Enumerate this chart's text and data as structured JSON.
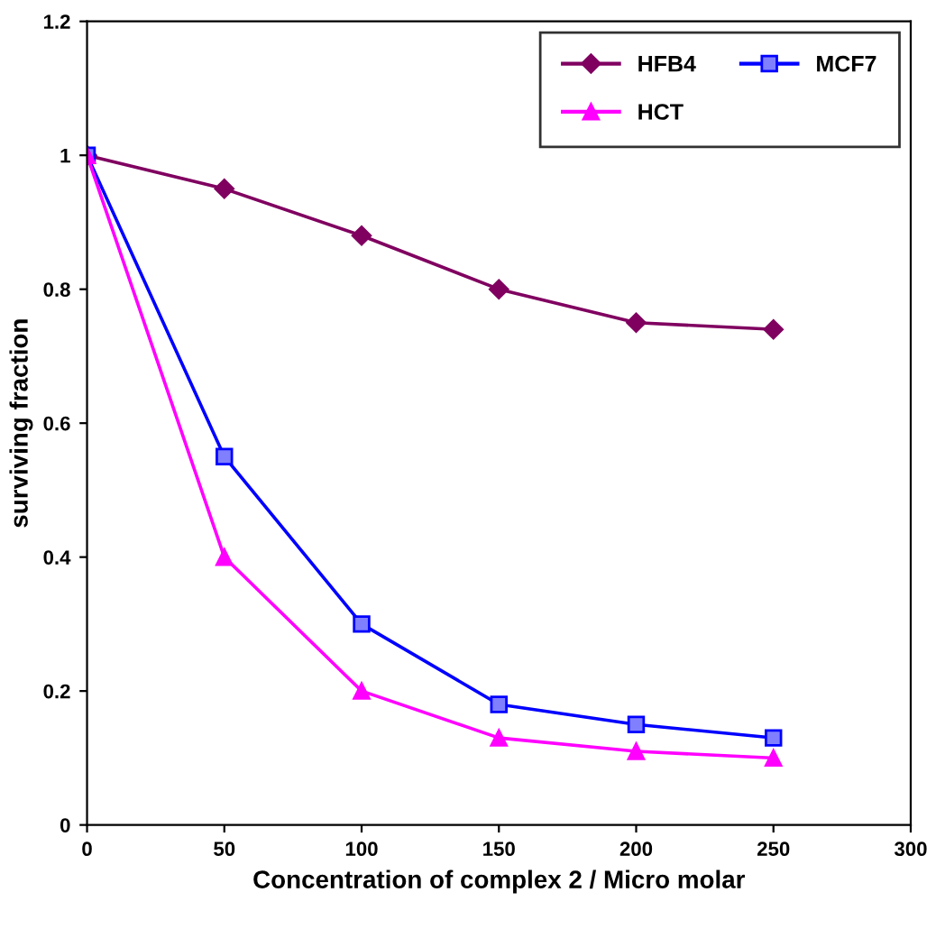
{
  "chart_data": {
    "type": "line",
    "xlabel": "Concentration of complex 2 / Micro molar",
    "ylabel": "surviving fraction",
    "x": [
      0,
      50,
      100,
      150,
      200,
      250
    ],
    "series": [
      {
        "name": "HFB4",
        "color": "#800060",
        "marker": "diamond",
        "values": [
          1,
          0.95,
          0.88,
          0.8,
          0.75,
          0.74
        ]
      },
      {
        "name": "MCF7",
        "color": "#0000ff",
        "marker": "square",
        "values": [
          1,
          0.55,
          0.3,
          0.18,
          0.15,
          0.13
        ]
      },
      {
        "name": "HCT",
        "color": "#ff00ff",
        "marker": "triangle",
        "values": [
          1,
          0.4,
          0.2,
          0.13,
          0.11,
          0.1
        ]
      }
    ],
    "xlim": [
      0,
      300
    ],
    "xticks": [
      0,
      50,
      100,
      150,
      200,
      250,
      300
    ],
    "ylim": [
      0,
      1.2
    ],
    "yticks": [
      0,
      0.2,
      0.4,
      0.6,
      0.8,
      1,
      1.2
    ],
    "grid": false,
    "legend": "top right",
    "line_style": "solid"
  }
}
